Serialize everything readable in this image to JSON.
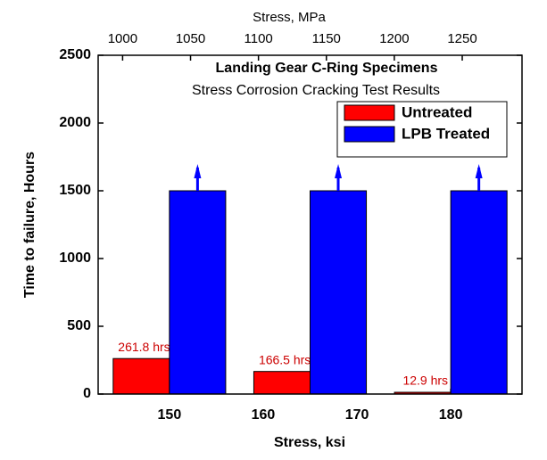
{
  "chart_data": {
    "type": "bar",
    "title": "Landing Gear C-Ring Specimens",
    "subtitle": "Stress Corrosion Cracking Test Results",
    "xlabel": "Stress, ksi",
    "ylabel": "Time to failure, Hours",
    "x2label": "Stress, MPa",
    "x": [
      150,
      165,
      180
    ],
    "series": [
      {
        "name": "Untreated",
        "color": "#ff0000",
        "values": [
          261.8,
          166.5,
          12.9
        ],
        "value_labels": [
          "261.8 hrs",
          "166.5 hrs",
          "12.9 hrs"
        ]
      },
      {
        "name": "LPB Treated",
        "color": "#0000ff",
        "values": [
          1500,
          1500,
          1500
        ]
      }
    ],
    "xlim": [
      142.4,
      187.6
    ],
    "xticks": [
      150,
      160,
      170,
      180
    ],
    "x2lim": [
      982,
      1294
    ],
    "x2ticks": [
      1000,
      1050,
      1100,
      1150,
      1200,
      1250
    ],
    "ylim": [
      0,
      2500
    ],
    "yticks": [
      0,
      500,
      1000,
      1500,
      2000,
      2500
    ],
    "legend": "upper right",
    "grid": false
  }
}
